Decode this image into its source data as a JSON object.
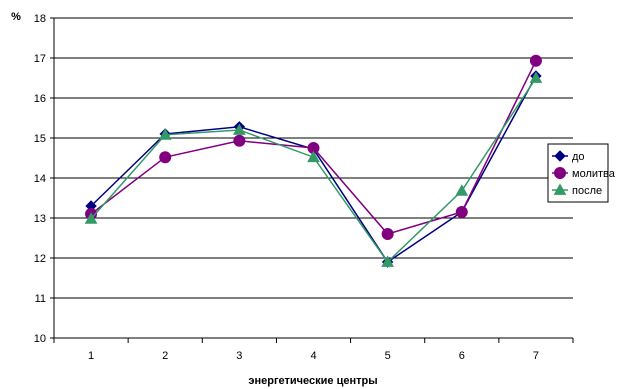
{
  "chart_data": {
    "type": "line",
    "title": "",
    "xlabel": "энергетические центры",
    "ylabel": "%",
    "categories": [
      "1",
      "2",
      "3",
      "4",
      "5",
      "6",
      "7"
    ],
    "ylim": [
      10,
      18
    ],
    "yticks": [
      10,
      11,
      12,
      13,
      14,
      15,
      16,
      17,
      18
    ],
    "grid": "horizontal",
    "legend_position": "right",
    "series": [
      {
        "name": "до",
        "color": "#000080",
        "marker": "diamond",
        "values": [
          13.3,
          15.1,
          15.28,
          14.72,
          11.9,
          13.15,
          16.55
        ]
      },
      {
        "name": "молитва",
        "color": "#800080",
        "marker": "circle",
        "values": [
          13.1,
          14.52,
          14.93,
          14.75,
          12.6,
          13.15,
          16.93
        ]
      },
      {
        "name": "после",
        "color": "#339966",
        "marker": "triangle",
        "values": [
          12.98,
          15.08,
          15.2,
          14.52,
          11.9,
          13.68,
          16.5
        ]
      }
    ]
  }
}
